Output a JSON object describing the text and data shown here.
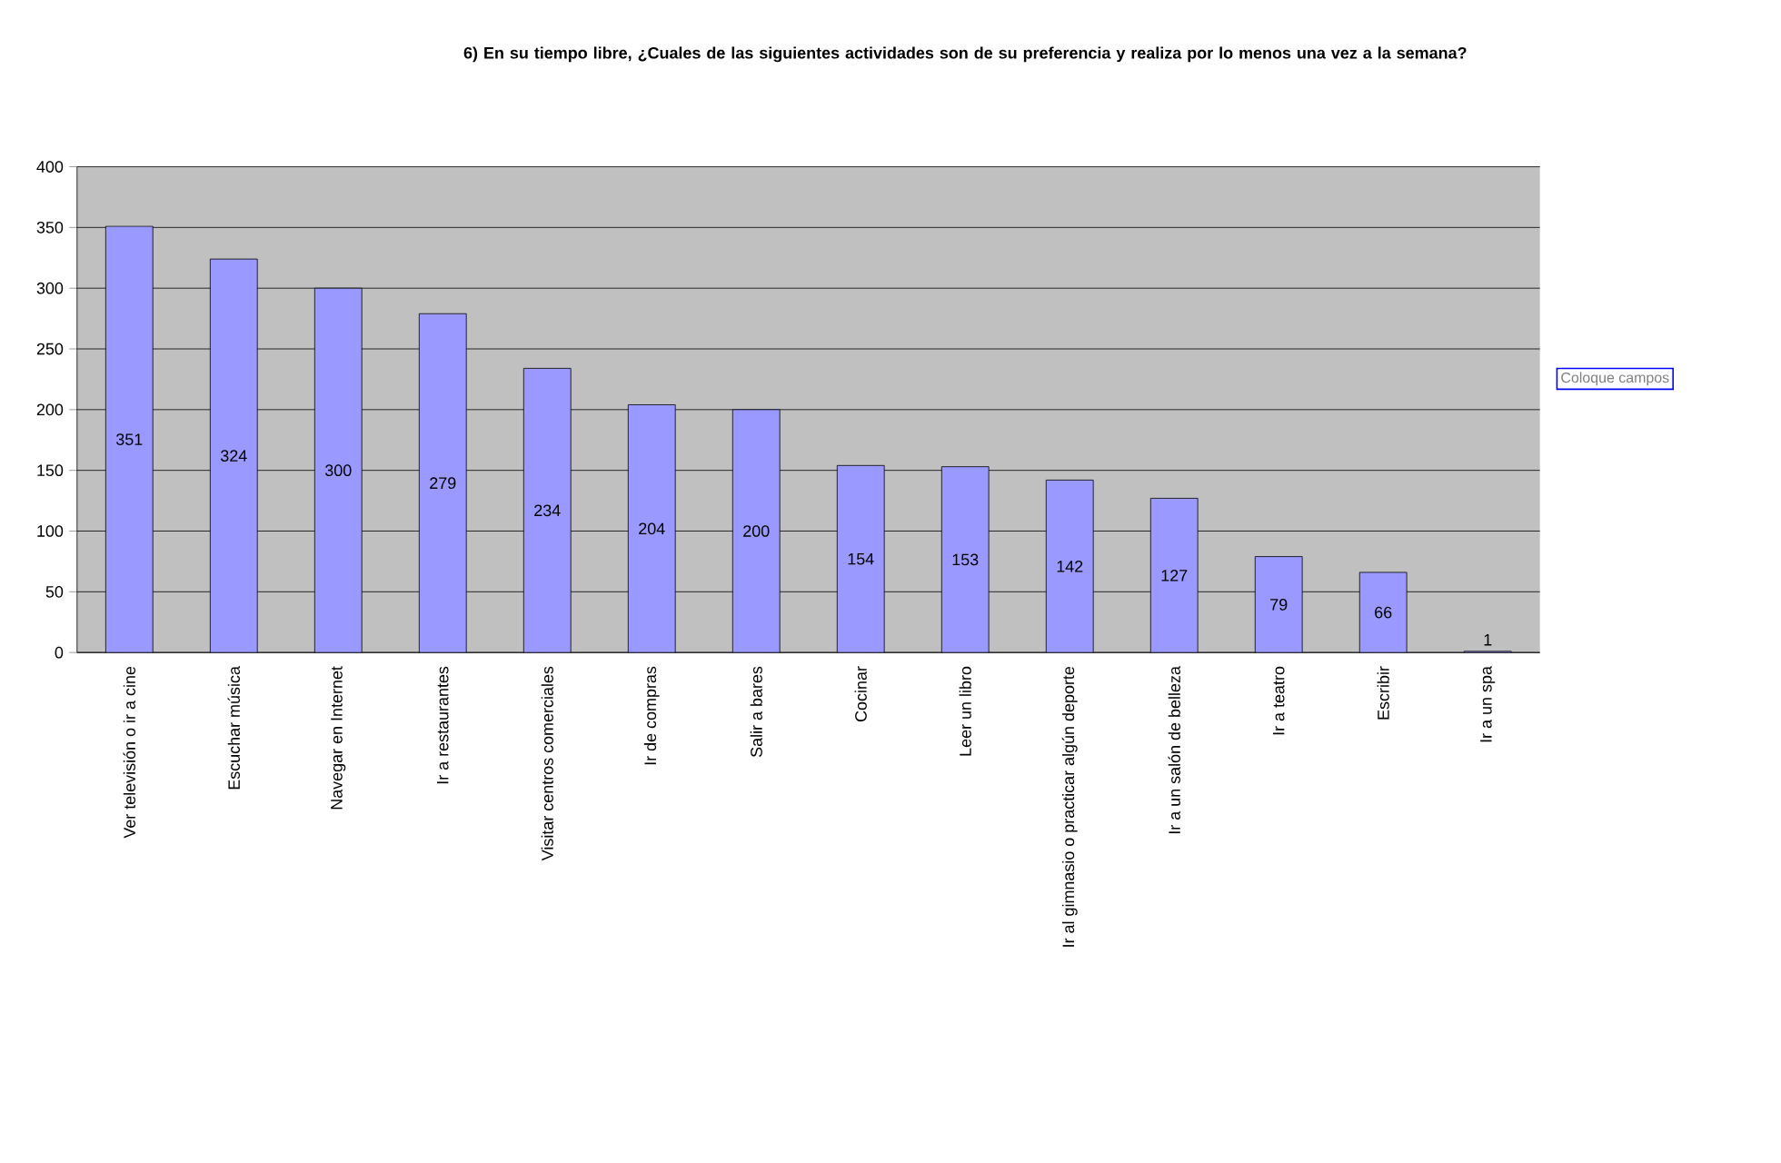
{
  "chart_data": {
    "type": "bar",
    "title": "6) En su tiempo libre, ¿Cuales de las siguientes actividades son de su preferencia y realiza por lo menos una vez a la semana?",
    "categories": [
      "Ver televisión o ir a cine",
      "Escuchar música",
      "Navegar en Internet",
      "Ir a restaurantes",
      "Visitar centros comerciales",
      "Ir de compras",
      "Salir a bares",
      "Cocinar",
      "Leer un libro",
      "Ir al gimnasio o practicar algún deporte",
      "Ir a un salón de belleza",
      "Ir a teatro",
      "Escribir",
      "Ir a un spa"
    ],
    "values": [
      351,
      324,
      300,
      279,
      234,
      204,
      200,
      154,
      153,
      142,
      127,
      79,
      66,
      1
    ],
    "color": "#9999ff",
    "ylim": [
      0,
      400
    ],
    "yticks": [
      0,
      50,
      100,
      150,
      200,
      250,
      300,
      350,
      400
    ],
    "grid": "y",
    "data_labels": true,
    "annotations": [
      "Coloque campos"
    ]
  }
}
